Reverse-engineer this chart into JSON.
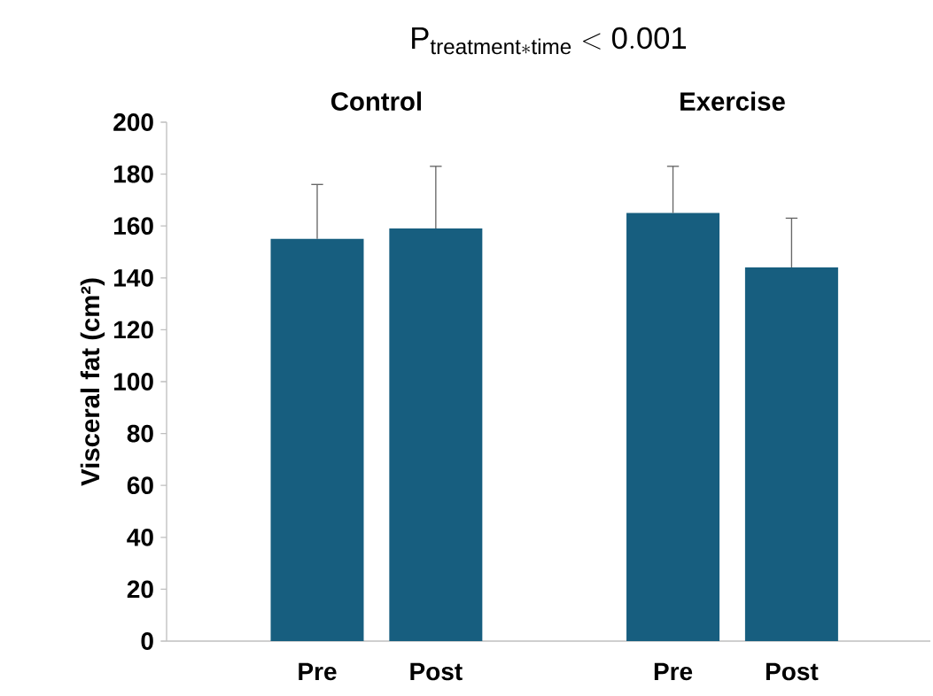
{
  "chart_data": {
    "type": "bar",
    "title": "\\mathrm{P}_{\\mathrm{treatment*time}} < \\mathrm{0.001}",
    "ylabel": "Visceral fat (cm²)",
    "categories": [
      "Pre",
      "Post",
      "Pre",
      "Post"
    ],
    "values": [
      155,
      159,
      165,
      144
    ],
    "errors": [
      21,
      24,
      18,
      19
    ],
    "color": "#175e7f",
    "ylim": [
      0,
      200
    ],
    "yticks": [
      0,
      20,
      40,
      60,
      80,
      100,
      120,
      140,
      160,
      180,
      200
    ],
    "annotations": [
      "Control",
      "Exercise"
    ]
  }
}
